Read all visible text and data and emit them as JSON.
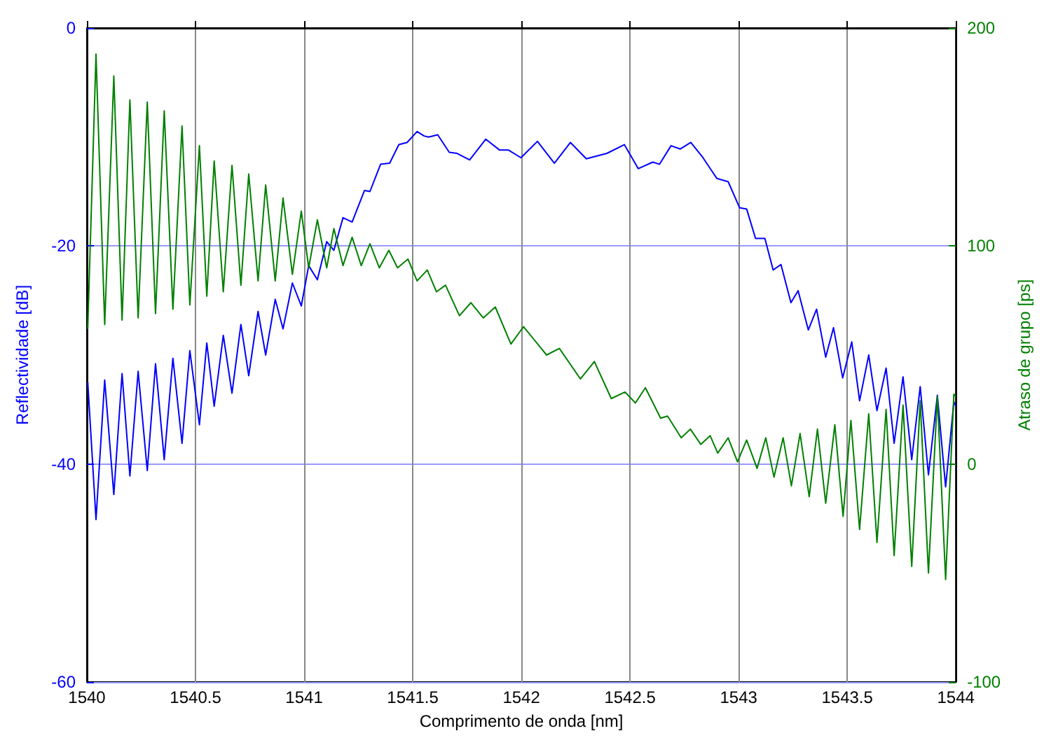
{
  "chart_data": {
    "type": "line",
    "xlabel": "Comprimento de onda [nm]",
    "ylabel": "Reflectividade [dB]",
    "y2label": "Atraso de grupo [ps]",
    "xlim": [
      1540,
      1544
    ],
    "xticks": [
      1540,
      1540.5,
      1541,
      1541.5,
      1542,
      1542.5,
      1543,
      1543.5,
      1544
    ],
    "ylim": [
      -60,
      0
    ],
    "yticks": [
      -60,
      -40,
      -20,
      0
    ],
    "y2lim": [
      -100,
      200
    ],
    "y2ticks": [
      -100,
      0,
      100,
      200
    ],
    "grid": true,
    "marker": "none",
    "line_style": "solid",
    "series": [
      {
        "color": "#0000ff",
        "x": [
          1540.004,
          1540.042,
          1540.082,
          1540.124,
          1540.162,
          1540.198,
          1540.236,
          1540.278,
          1540.316,
          1540.356,
          1540.396,
          1540.438,
          1540.474,
          1540.518,
          1540.552,
          1540.586,
          1540.628,
          1540.668,
          1540.709,
          1540.745,
          1540.788,
          1540.823,
          1540.867,
          1540.903,
          1540.946,
          1540.987,
          1541.021,
          1541.061,
          1541.104,
          1541.137,
          1541.179,
          1541.221,
          1541.278,
          1541.303,
          1541.352,
          1541.394,
          1541.436,
          1541.474,
          1541.52,
          1541.552,
          1541.573,
          1541.615,
          1541.668,
          1541.704,
          1541.762,
          1541.836,
          1541.9,
          1541.941,
          1541.998,
          1542.074,
          1542.152,
          1542.226,
          1542.299,
          1542.394,
          1542.474,
          1542.538,
          1542.605,
          1542.636,
          1542.689,
          1542.731,
          1542.78,
          1542.836,
          1542.9,
          1542.952,
          1543.005,
          1543.037,
          1543.078,
          1543.121,
          1543.159,
          1543.195,
          1543.241,
          1543.274,
          1543.321,
          1543.359,
          1543.401,
          1543.437,
          1543.479,
          1543.521,
          1543.557,
          1543.599,
          1543.637,
          1543.679,
          1543.716,
          1543.757,
          1543.797,
          1543.836,
          1543.874,
          1543.915,
          1543.953,
          1543.991,
          1544
        ],
        "values": [
          -32.5,
          -45.1,
          -32.3,
          -42.8,
          -31.7,
          -41.1,
          -31.5,
          -40.6,
          -30.8,
          -39.6,
          -30.3,
          -38.1,
          -29.6,
          -36.4,
          -28.9,
          -34.7,
          -28.2,
          -33.5,
          -27.2,
          -31.9,
          -26.0,
          -30.0,
          -24.9,
          -27.6,
          -23.4,
          -25.5,
          -21.8,
          -23.1,
          -19.6,
          -20.4,
          -17.4,
          -17.8,
          -14.9,
          -15.0,
          -12.5,
          -12.4,
          -10.7,
          -10.5,
          -9.5,
          -9.9,
          -10.0,
          -9.8,
          -11.4,
          -11.5,
          -12.1,
          -10.2,
          -11.2,
          -11.2,
          -11.9,
          -10.4,
          -12.4,
          -10.5,
          -12.0,
          -11.5,
          -10.7,
          -12.9,
          -12.3,
          -12.5,
          -10.8,
          -11.1,
          -10.5,
          -11.9,
          -13.8,
          -14.1,
          -16.5,
          -16.6,
          -19.3,
          -19.3,
          -22.2,
          -21.7,
          -25.2,
          -24.1,
          -27.7,
          -25.8,
          -30.2,
          -27.5,
          -32.1,
          -28.8,
          -34.2,
          -30.0,
          -35.1,
          -31.2,
          -38.1,
          -32.0,
          -39.6,
          -32.9,
          -41.0,
          -33.7,
          -42.1,
          -34.3,
          -34.7
        ]
      },
      {
        "color": "#008000",
        "axis": "y2",
        "x": [
          1540.004,
          1540.042,
          1540.082,
          1540.124,
          1540.162,
          1540.198,
          1540.236,
          1540.278,
          1540.316,
          1540.356,
          1540.396,
          1540.438,
          1540.474,
          1540.518,
          1540.552,
          1540.586,
          1540.628,
          1540.668,
          1540.709,
          1540.745,
          1540.788,
          1540.823,
          1540.867,
          1540.903,
          1540.946,
          1540.987,
          1541.021,
          1541.061,
          1541.104,
          1541.137,
          1541.179,
          1541.221,
          1541.263,
          1541.303,
          1541.346,
          1541.39,
          1541.43,
          1541.478,
          1541.52,
          1541.567,
          1541.609,
          1541.651,
          1541.715,
          1541.768,
          1541.825,
          1541.88,
          1541.952,
          1542.01,
          1542.116,
          1542.175,
          1542.272,
          1542.336,
          1542.414,
          1542.477,
          1542.525,
          1542.571,
          1542.641,
          1542.673,
          1542.736,
          1542.778,
          1542.826,
          1542.869,
          1542.904,
          1542.952,
          1542.995,
          1543.037,
          1543.085,
          1543.125,
          1543.163,
          1543.205,
          1543.243,
          1543.283,
          1543.325,
          1543.363,
          1543.401,
          1543.443,
          1543.481,
          1543.517,
          1543.557,
          1543.599,
          1543.637,
          1543.679,
          1543.716,
          1543.757,
          1543.797,
          1543.836,
          1543.874,
          1543.915,
          1543.953,
          1543.991,
          1544
        ],
        "values": [
          62,
          188,
          64,
          178,
          66,
          167,
          67,
          166,
          69,
          162,
          71,
          155,
          73,
          146,
          77,
          139,
          79,
          137,
          82,
          133,
          84,
          128,
          84,
          122,
          87,
          116,
          90,
          112,
          90,
          108,
          91,
          104,
          91,
          101,
          90,
          98,
          90,
          94,
          84,
          89,
          79,
          82,
          68,
          74,
          67,
          72,
          55,
          63,
          50,
          53,
          39,
          47,
          30,
          33,
          28,
          35,
          21,
          22,
          12,
          16,
          9,
          13,
          5,
          12,
          1,
          11,
          -2,
          12,
          -6,
          12,
          -10,
          14,
          -15,
          16,
          -18,
          18,
          -24,
          20,
          -30,
          23,
          -36,
          25,
          -42,
          27,
          -47,
          29,
          -50,
          31,
          -53,
          32,
          31
        ]
      }
    ]
  }
}
